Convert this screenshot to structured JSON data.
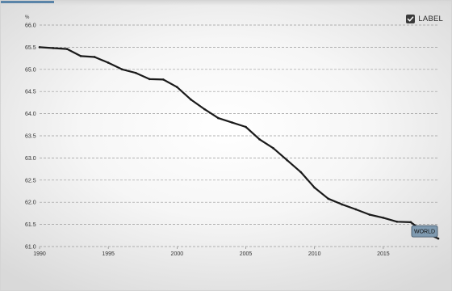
{
  "chart_data": {
    "type": "line",
    "ylabel": "%",
    "xlim": [
      1990,
      2019
    ],
    "ylim": [
      61.0,
      66.0
    ],
    "x_ticks": [
      1990,
      1995,
      2000,
      2005,
      2010,
      2015
    ],
    "x_tick_labels": [
      "1990",
      "1995",
      "2000",
      "2005",
      "2010",
      "2015"
    ],
    "y_ticks": [
      61.0,
      61.5,
      62.0,
      62.5,
      63.0,
      63.5,
      64.0,
      64.5,
      65.0,
      65.5,
      66.0
    ],
    "y_tick_labels": [
      "61.0",
      "61.5",
      "62.0",
      "62.5",
      "63.0",
      "63.5",
      "64.0",
      "64.5",
      "65.0",
      "65.5",
      "66.0"
    ],
    "grid": true,
    "legend_position": "top-right",
    "series": [
      {
        "name": "WORLD",
        "color": "#1a1a1a",
        "x": [
          1990,
          1991,
          1992,
          1993,
          1994,
          1995,
          1996,
          1997,
          1998,
          1999,
          2000,
          2001,
          2002,
          2003,
          2004,
          2005,
          2006,
          2007,
          2008,
          2009,
          2010,
          2011,
          2012,
          2013,
          2014,
          2015,
          2016,
          2017,
          2018,
          2019
        ],
        "values": [
          65.5,
          65.48,
          65.46,
          65.3,
          65.28,
          65.15,
          65.0,
          64.92,
          64.78,
          64.77,
          64.6,
          64.32,
          64.1,
          63.9,
          63.8,
          63.7,
          63.42,
          63.22,
          62.95,
          62.68,
          62.33,
          62.08,
          61.95,
          61.84,
          61.72,
          61.65,
          61.56,
          61.55,
          61.32,
          61.18
        ]
      }
    ],
    "end_label": "WORLD"
  },
  "legend": {
    "label": "LABEL",
    "checked": true
  },
  "colors": {
    "line": "#1a1a1a",
    "grid": "#9a9a9a",
    "tag_fill": "#7f9ab0",
    "tag_stroke": "#3d4f60",
    "accent": "#5a84a8"
  }
}
